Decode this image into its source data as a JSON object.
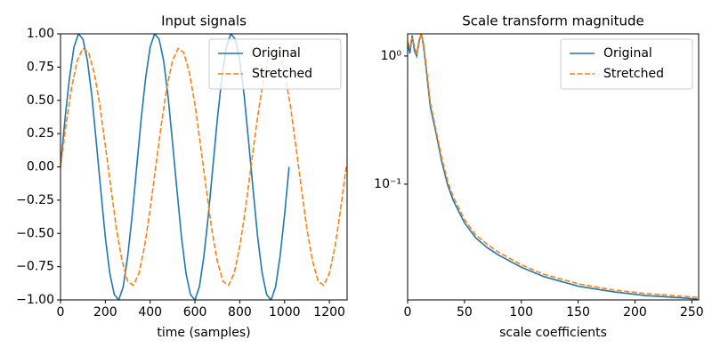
{
  "chart_data": [
    {
      "type": "line",
      "title": "Input signals",
      "xlabel": "time (samples)",
      "xlim": [
        0,
        1279
      ],
      "xticks": [
        0,
        200,
        400,
        600,
        800,
        1000,
        1200
      ],
      "ylim": [
        -1,
        1
      ],
      "yticks": [
        {
          "value": -1,
          "label": "−1.00"
        },
        {
          "value": -0.75,
          "label": "−0.75"
        },
        {
          "value": -0.5,
          "label": "−0.50"
        },
        {
          "value": -0.25,
          "label": "−0.25"
        },
        {
          "value": 0,
          "label": "0.00"
        },
        {
          "value": 0.25,
          "label": "0.25"
        },
        {
          "value": 0.5,
          "label": "0.50"
        },
        {
          "value": 0.75,
          "label": "0.75"
        },
        {
          "value": 1,
          "label": "1.00"
        }
      ],
      "legend": "upper right",
      "series": [
        {
          "name": "Original",
          "color": "#1f77b4",
          "linestyle": "solid",
          "x": [
            0,
            20,
            40,
            60,
            80,
            100,
            120,
            140,
            160,
            180,
            200,
            220,
            240,
            260,
            280,
            300,
            320,
            340,
            360,
            380,
            400,
            420,
            440,
            460,
            480,
            500,
            520,
            540,
            560,
            580,
            600,
            620,
            640,
            660,
            680,
            700,
            720,
            740,
            760,
            780,
            800,
            820,
            840,
            860,
            880,
            900,
            920,
            940,
            960,
            980,
            1000,
            1020
          ],
          "values": [
            0,
            0.36,
            0.67,
            0.9,
            1.0,
            0.96,
            0.8,
            0.53,
            0.18,
            -0.18,
            -0.53,
            -0.8,
            -0.96,
            -1.0,
            -0.9,
            -0.67,
            -0.36,
            0,
            0.36,
            0.67,
            0.9,
            1.0,
            0.96,
            0.8,
            0.53,
            0.18,
            -0.18,
            -0.53,
            -0.8,
            -0.96,
            -1.0,
            -0.9,
            -0.67,
            -0.36,
            0,
            0.36,
            0.67,
            0.9,
            1.0,
            0.96,
            0.8,
            0.53,
            0.18,
            -0.18,
            -0.53,
            -0.8,
            -0.96,
            -1.0,
            -0.9,
            -0.67,
            -0.36,
            0
          ]
        },
        {
          "name": "Stretched",
          "color": "#ff7f0e",
          "linestyle": "dashed",
          "x": [
            0,
            25,
            50,
            75,
            100,
            125,
            150,
            175,
            200,
            225,
            250,
            275,
            300,
            325,
            350,
            375,
            400,
            425,
            450,
            475,
            500,
            525,
            550,
            575,
            600,
            625,
            650,
            675,
            700,
            725,
            750,
            775,
            800,
            825,
            850,
            875,
            900,
            925,
            950,
            975,
            1000,
            1025,
            1050,
            1075,
            1100,
            1125,
            1150,
            1175,
            1200,
            1225,
            1250,
            1275
          ],
          "values": [
            0,
            0.32,
            0.6,
            0.8,
            0.89,
            0.86,
            0.71,
            0.47,
            0.16,
            -0.16,
            -0.47,
            -0.71,
            -0.86,
            -0.89,
            -0.8,
            -0.6,
            -0.32,
            0,
            0.32,
            0.6,
            0.8,
            0.89,
            0.86,
            0.71,
            0.47,
            0.16,
            -0.16,
            -0.47,
            -0.71,
            -0.86,
            -0.89,
            -0.8,
            -0.6,
            -0.32,
            0,
            0.32,
            0.6,
            0.8,
            0.89,
            0.86,
            0.71,
            0.47,
            0.16,
            -0.16,
            -0.47,
            -0.71,
            -0.86,
            -0.89,
            -0.8,
            -0.6,
            -0.32,
            0
          ]
        }
      ]
    },
    {
      "type": "line",
      "title": "Scale transform magnitude",
      "xlabel": "scale coefficients",
      "xlim": [
        0,
        256
      ],
      "xticks": [
        0,
        50,
        100,
        150,
        200,
        250
      ],
      "ylim": [
        0.0125,
        1.49
      ],
      "log_y": true,
      "yticks": [
        {
          "value": 0.1,
          "label": "10⁻¹"
        },
        {
          "value": 1,
          "label": "10⁰"
        }
      ],
      "legend": "upper right",
      "series": [
        {
          "name": "Original",
          "color": "#1f77b4",
          "linestyle": "solid",
          "x": [
            0,
            2,
            4,
            6,
            8,
            10,
            12,
            14,
            16,
            18,
            20,
            25,
            30,
            35,
            40,
            50,
            60,
            70,
            80,
            100,
            120,
            150,
            180,
            210,
            240,
            255
          ],
          "values": [
            1.25,
            1.05,
            1.45,
            1.1,
            1.0,
            1.3,
            1.5,
            1.2,
            0.85,
            0.58,
            0.4,
            0.25,
            0.15,
            0.1,
            0.075,
            0.05,
            0.038,
            0.032,
            0.028,
            0.0225,
            0.019,
            0.016,
            0.0145,
            0.0135,
            0.013,
            0.0127
          ]
        },
        {
          "name": "Stretched",
          "color": "#ff7f0e",
          "linestyle": "dashed",
          "x": [
            0,
            2,
            4,
            6,
            8,
            10,
            12,
            14,
            16,
            18,
            20,
            25,
            30,
            35,
            40,
            50,
            60,
            70,
            80,
            100,
            120,
            150,
            180,
            210,
            240,
            255
          ],
          "values": [
            1.3,
            1.15,
            1.4,
            1.2,
            1.02,
            1.25,
            1.5,
            1.25,
            0.9,
            0.62,
            0.43,
            0.265,
            0.16,
            0.107,
            0.08,
            0.053,
            0.04,
            0.034,
            0.0295,
            0.0235,
            0.0198,
            0.0167,
            0.015,
            0.014,
            0.0134,
            0.0131
          ]
        }
      ]
    }
  ]
}
